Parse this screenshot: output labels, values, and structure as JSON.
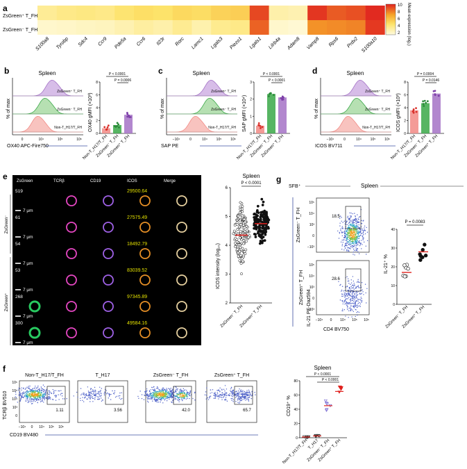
{
  "panels": {
    "a": {
      "letter": "a",
      "rows": [
        "ZsGreen⁺ T_FH",
        "ZsGreen⁻ T_FH"
      ],
      "genes": [
        "S100a8",
        "Tyrobp",
        "Sdc4",
        "Ccr9",
        "Pde5a",
        "Ccr6",
        "Il23r",
        "Rorc",
        "Lamc1",
        "Lgals3",
        "Piezo1",
        "Lgals1",
        "Lilrb4a",
        "Adam8",
        "Vamp8",
        "Rps6",
        "Prdx2",
        "S100a10"
      ],
      "values_top": [
        2.2,
        2.6,
        2.8,
        2.6,
        3.3,
        3.7,
        3.5,
        4.0,
        3.8,
        4.3,
        4.5,
        9.0,
        1.6,
        1.4,
        9.5,
        8.5,
        8.8,
        9.8
      ],
      "values_bottom": [
        0.6,
        0.7,
        0.9,
        1.0,
        1.4,
        1.9,
        1.6,
        2.3,
        1.5,
        2.4,
        2.6,
        8.3,
        0.6,
        0.4,
        7.0,
        7.2,
        7.4,
        9.4
      ],
      "colorbar_ticks": [
        "10",
        "8",
        "6",
        "4",
        "2"
      ],
      "colorbar_label": "Mean expression (log₂)"
    },
    "b": {
      "letter": "b",
      "title": "Spleen",
      "y_label": "% of max",
      "x_label": "OX40 APC-Fire750",
      "x_ticks": [
        "0",
        "10⁴",
        "10⁵",
        "10⁶"
      ],
      "hist_labels": [
        "ZsGreen⁺ T_FH",
        "ZsGreen⁻ T_FH",
        "Non-T_H17/T_FH"
      ],
      "bar_y_label": "OX40 gMFI (×10³)",
      "bar_y_ticks": [
        "0",
        "2",
        "4",
        "6",
        "8"
      ],
      "pvals": [
        "P < 0.0001",
        "P = 0.0006"
      ],
      "categories": [
        "Non-T_H17/T_FH",
        "ZsGreen⁻ T_FH",
        "ZsGreen⁺ T_FH"
      ],
      "values": [
        0.8,
        1.3,
        2.9
      ]
    },
    "c": {
      "letter": "c",
      "title": "Spleen",
      "y_label": "% of max",
      "x_label": "SAP PE",
      "x_ticks": [
        "−10⁴",
        "0",
        "10⁴",
        "10⁵",
        "10⁶"
      ],
      "hist_labels": [
        "ZsGreen⁺ T_FH",
        "ZsGreen⁻ T_FH",
        "Non-T_H17/T_FH"
      ],
      "bar_y_label": "SAP gMFI (×10⁴)",
      "bar_y_ticks": [
        "0",
        "1",
        "2",
        "3"
      ],
      "pvals": [
        "P < 0.0001",
        "P < 0.0001"
      ],
      "categories": [
        "Non-T_H17/T_FH",
        "ZsGreen⁻ T_FH",
        "ZsGreen⁺ T_FH"
      ],
      "values": [
        0.45,
        2.3,
        2.1
      ]
    },
    "d": {
      "letter": "d",
      "title": "Spleen",
      "y_label": "% of max",
      "x_label": "ICOS BV711",
      "x_ticks": [
        "−10⁴",
        "0",
        "10⁴",
        "10⁵",
        "10⁶"
      ],
      "hist_labels": [
        "ZsGreen⁺ T_FH",
        "ZsGreen⁻ T_FH",
        "Non-T_H17/T_FH"
      ],
      "bar_y_label": "ICOS gMFI (×10³)",
      "bar_y_ticks": [
        "0",
        "2",
        "4",
        "6",
        "8"
      ],
      "pvals": [
        "P = 0.0004",
        "P = 0.0146"
      ],
      "categories": [
        "Non-T_H17/T_FH",
        "ZsGreen⁻ T_FH",
        "ZsGreen⁺ T_FH"
      ],
      "values": [
        3.6,
        4.7,
        6.2
      ]
    },
    "e": {
      "letter": "e",
      "columns": [
        "ZsGreen",
        "TCRβ",
        "CD19",
        "ICOS",
        "Merge"
      ],
      "row_ids": [
        "519",
        "61",
        "54",
        "53",
        "268",
        "300"
      ],
      "icos_values": [
        "29500.64",
        "27575.49",
        "18492.79",
        "83039.52",
        "97345.89",
        "49584.16"
      ],
      "scale_label": "7 μm",
      "group_labels": [
        "ZsGreen⁻",
        "ZsGreen⁺"
      ],
      "scatter_title": "Spleen",
      "scatter_pval": "P < 0.0001",
      "scatter_y_label": "ICOS intensity (log₁₀)",
      "scatter_y_ticks": [
        "2",
        "3",
        "4",
        "5",
        "6"
      ],
      "scatter_categories": [
        "ZsGreen⁻ T_FH",
        "ZsGreen⁺ T_FH"
      ],
      "medians": [
        4.35,
        4.75
      ]
    },
    "f": {
      "letter": "f",
      "y_label": "TCRβ BV510",
      "x_label": "CD19 BV480",
      "plots": [
        {
          "title": "Non-T_H17/T_FH",
          "gate": "1.11"
        },
        {
          "title": "T_H17",
          "gate": "3.56"
        },
        {
          "title": "ZsGreen⁻ T_FH",
          "gate": "42.0"
        },
        {
          "title": "ZsGreen⁺ T_FH",
          "gate": "65.7"
        }
      ],
      "y_ticks": [
        "10⁶",
        "10⁵",
        "10⁴",
        "10³",
        "0"
      ],
      "x_ticks": [
        "−10⁴",
        "0",
        "10⁴",
        "10⁵",
        "10⁶"
      ],
      "bar_title": "Spleen",
      "bar_y_label": "CD19⁺ %",
      "bar_y_ticks": [
        "0",
        "20",
        "40",
        "60",
        "80"
      ],
      "pvals": [
        "P < 0.0001",
        "P < 0.0001"
      ],
      "categories": [
        "Non-T_H17/T_FH",
        "T_H17",
        "ZsGreen⁻ T_FH",
        "ZsGreen⁺ T_FH"
      ],
      "values": [
        1.0,
        2.5,
        45,
        65
      ]
    },
    "g": {
      "letter": "g",
      "header_left": "SFB⁺",
      "header_right": "Spleen",
      "row_labels": [
        "ZsGreen⁻ T_FH",
        "ZsGreen⁺ T_FH"
      ],
      "gates": [
        "18.5",
        "28.6"
      ],
      "y_label": "IL-21 PE-Daz594",
      "x_label": "CD4 BV750",
      "y_ticks": [
        "10⁵",
        "10⁴",
        "10³",
        "0",
        "−10³"
      ],
      "x_ticks": [
        "−10⁴",
        "0",
        "10⁴",
        "10⁵",
        "10⁶"
      ],
      "bar_y_label": "IL-21⁺ %",
      "bar_y_ticks": [
        "0",
        "10",
        "20",
        "30",
        "40"
      ],
      "pval": "P = 0.0083",
      "categories": [
        "ZsGreen⁻ T_FH",
        "ZsGreen⁺ T_FH"
      ],
      "values": [
        17,
        28
      ]
    }
  },
  "colors": {
    "green": "#3aa848",
    "purple": "#a472c6",
    "red_hist": "#f28a85",
    "heat_low": "#fff7c2",
    "heat_mid": "#f6a52a",
    "heat_high": "#e0231f",
    "micro_bg": "#000000",
    "icos_text": "#e3e000"
  },
  "chart_data": [
    {
      "type": "heatmap",
      "title": "",
      "rows": [
        "ZsGreen⁺ T_FH",
        "ZsGreen⁻ T_FH"
      ],
      "columns": [
        "S100a8",
        "Tyrobp",
        "Sdc4",
        "Ccr9",
        "Pde5a",
        "Ccr6",
        "Il23r",
        "Rorc",
        "Lamc1",
        "Lgals3",
        "Piezo1",
        "Lgals1",
        "Lilrb4a",
        "Adam8",
        "Vamp8",
        "Rps6",
        "Prdx2",
        "S100a10"
      ],
      "values": [
        [
          2.2,
          2.6,
          2.8,
          2.6,
          3.3,
          3.7,
          3.5,
          4.0,
          3.8,
          4.3,
          4.5,
          9.0,
          1.6,
          1.4,
          9.5,
          8.5,
          8.8,
          9.8
        ],
        [
          0.6,
          0.7,
          0.9,
          1.0,
          1.4,
          1.9,
          1.6,
          2.3,
          1.5,
          2.4,
          2.6,
          8.3,
          0.6,
          0.4,
          7.0,
          7.2,
          7.4,
          9.4
        ]
      ],
      "zlim": [
        0,
        10
      ]
    },
    {
      "type": "bar",
      "ylabel": "OX40 gMFI (×10³)",
      "categories": [
        "Non-T_H17/T_FH",
        "ZsGreen⁻ T_FH",
        "ZsGreen⁺ T_FH"
      ],
      "values": [
        0.8,
        1.3,
        2.9
      ],
      "ylim": [
        0,
        8
      ]
    },
    {
      "type": "bar",
      "ylabel": "SAP gMFI (×10⁴)",
      "categories": [
        "Non-T_H17/T_FH",
        "ZsGreen⁻ T_FH",
        "ZsGreen⁺ T_FH"
      ],
      "values": [
        0.45,
        2.3,
        2.1
      ],
      "ylim": [
        0,
        3
      ]
    },
    {
      "type": "bar",
      "ylabel": "ICOS gMFI (×10³)",
      "categories": [
        "Non-T_H17/T_FH",
        "ZsGreen⁻ T_FH",
        "ZsGreen⁺ T_FH"
      ],
      "values": [
        3.6,
        4.7,
        6.2
      ],
      "ylim": [
        0,
        8
      ]
    },
    {
      "type": "scatter",
      "ylabel": "ICOS intensity (log₁₀)",
      "categories": [
        "ZsGreen⁻ T_FH",
        "ZsGreen⁺ T_FH"
      ],
      "medians": [
        4.35,
        4.75
      ],
      "ylim": [
        2,
        6
      ]
    },
    {
      "type": "scatter",
      "ylabel": "CD19⁺ %",
      "categories": [
        "Non-T_H17/T_FH",
        "T_H17",
        "ZsGreen⁻ T_FH",
        "ZsGreen⁺ T_FH"
      ],
      "values": [
        1.0,
        2.5,
        45,
        65
      ],
      "ylim": [
        0,
        80
      ]
    },
    {
      "type": "scatter",
      "ylabel": "IL-21⁺ %",
      "categories": [
        "ZsGreen⁻ T_FH",
        "ZsGreen⁺ T_FH"
      ],
      "values": [
        17,
        28
      ],
      "ylim": [
        0,
        40
      ]
    }
  ]
}
